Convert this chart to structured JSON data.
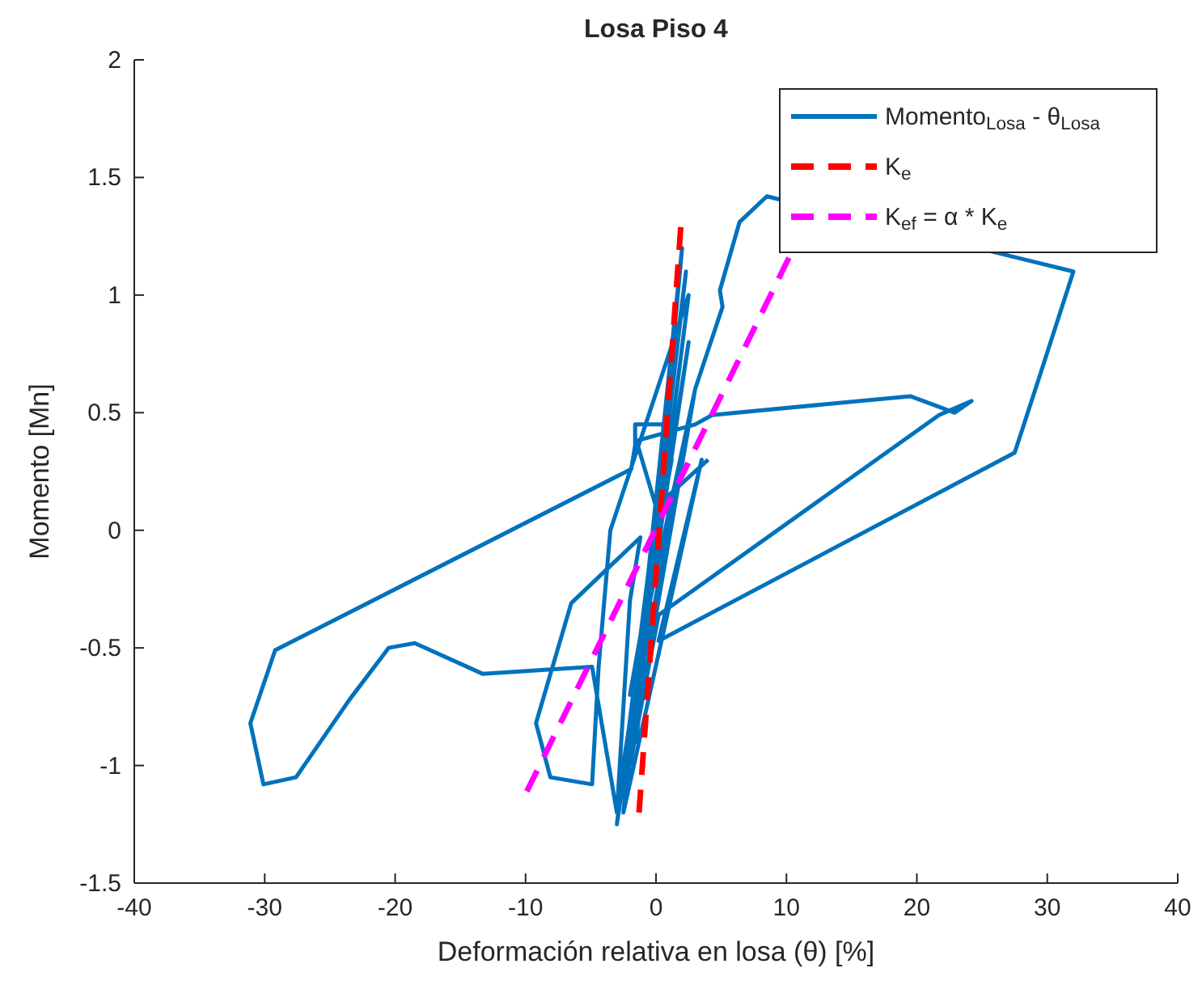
{
  "chart_data": {
    "type": "line",
    "title": "Losa Piso 4",
    "xlabel": "Deformación relativa en losa (θ) [%]",
    "ylabel": "Momento [Mn]",
    "xlim": [
      -40,
      40
    ],
    "xticks": [
      -40,
      -30,
      -20,
      -10,
      0,
      10,
      20,
      30,
      40
    ],
    "ylim": [
      -1.5,
      2
    ],
    "yticks": [
      -1.5,
      -1,
      -0.5,
      0,
      0.5,
      1,
      1.5,
      2
    ],
    "grid": false,
    "legend": "top right",
    "marker": "none",
    "series": [
      {
        "name": "Momento$_{Losa}$ - θ$_{Losa}$",
        "color": "#0072bd",
        "line_style": "solid",
        "x": [
          0,
          1.5,
          -1.5,
          2,
          -2.5,
          2.3,
          -3,
          2.5,
          -2.8,
          3,
          -2,
          1.2,
          0.5,
          -1.6,
          -1.6,
          -1.9,
          -29.2,
          -31.1,
          -30.1,
          -27.6,
          -23.5,
          -20.5,
          -18.5,
          -13.3,
          -4.9,
          -3,
          -2,
          -1.2,
          -6.5,
          -9.2,
          -8.1,
          -4.9,
          -4.4,
          -3.5,
          2.5,
          -2.5,
          3.5,
          0.2,
          27.5,
          29.5,
          32,
          8.5,
          6.4,
          4.9,
          5.1,
          3,
          -2,
          0.2,
          21.7,
          24.2,
          22.9,
          19.5,
          4.3,
          3,
          -1.5,
          0,
          4
        ],
        "values": [
          0,
          0.9,
          -0.9,
          1.2,
          -1.2,
          1.1,
          -1.25,
          0.8,
          -1.1,
          0.6,
          -0.7,
          0.3,
          0.45,
          0.45,
          0.36,
          0.26,
          -0.51,
          -0.82,
          -1.08,
          -1.05,
          -0.72,
          -0.5,
          -0.48,
          -0.61,
          -0.58,
          -1.2,
          -0.3,
          -0.03,
          -0.31,
          -0.82,
          -1.05,
          -1.08,
          -0.58,
          0,
          1,
          -1.2,
          0.3,
          -0.47,
          0.33,
          0.67,
          1.1,
          1.42,
          1.31,
          1.02,
          0.95,
          0.6,
          -1,
          -0.36,
          0.49,
          0.55,
          0.5,
          0.57,
          0.49,
          0.45,
          0.38,
          0.1,
          0.3
        ]
      },
      {
        "name": "K$_{e}$",
        "color": "#ff0000",
        "line_style": "dashed",
        "x": [
          -1.3,
          1.9
        ],
        "values": [
          -1.2,
          1.29
        ]
      },
      {
        "name": "K$_{ef}$ = α * K$_{e}$",
        "color": "#ff00ff",
        "line_style": "dashed",
        "x": [
          -9.9,
          10.2
        ],
        "values": [
          -1.11,
          1.16
        ]
      }
    ]
  }
}
